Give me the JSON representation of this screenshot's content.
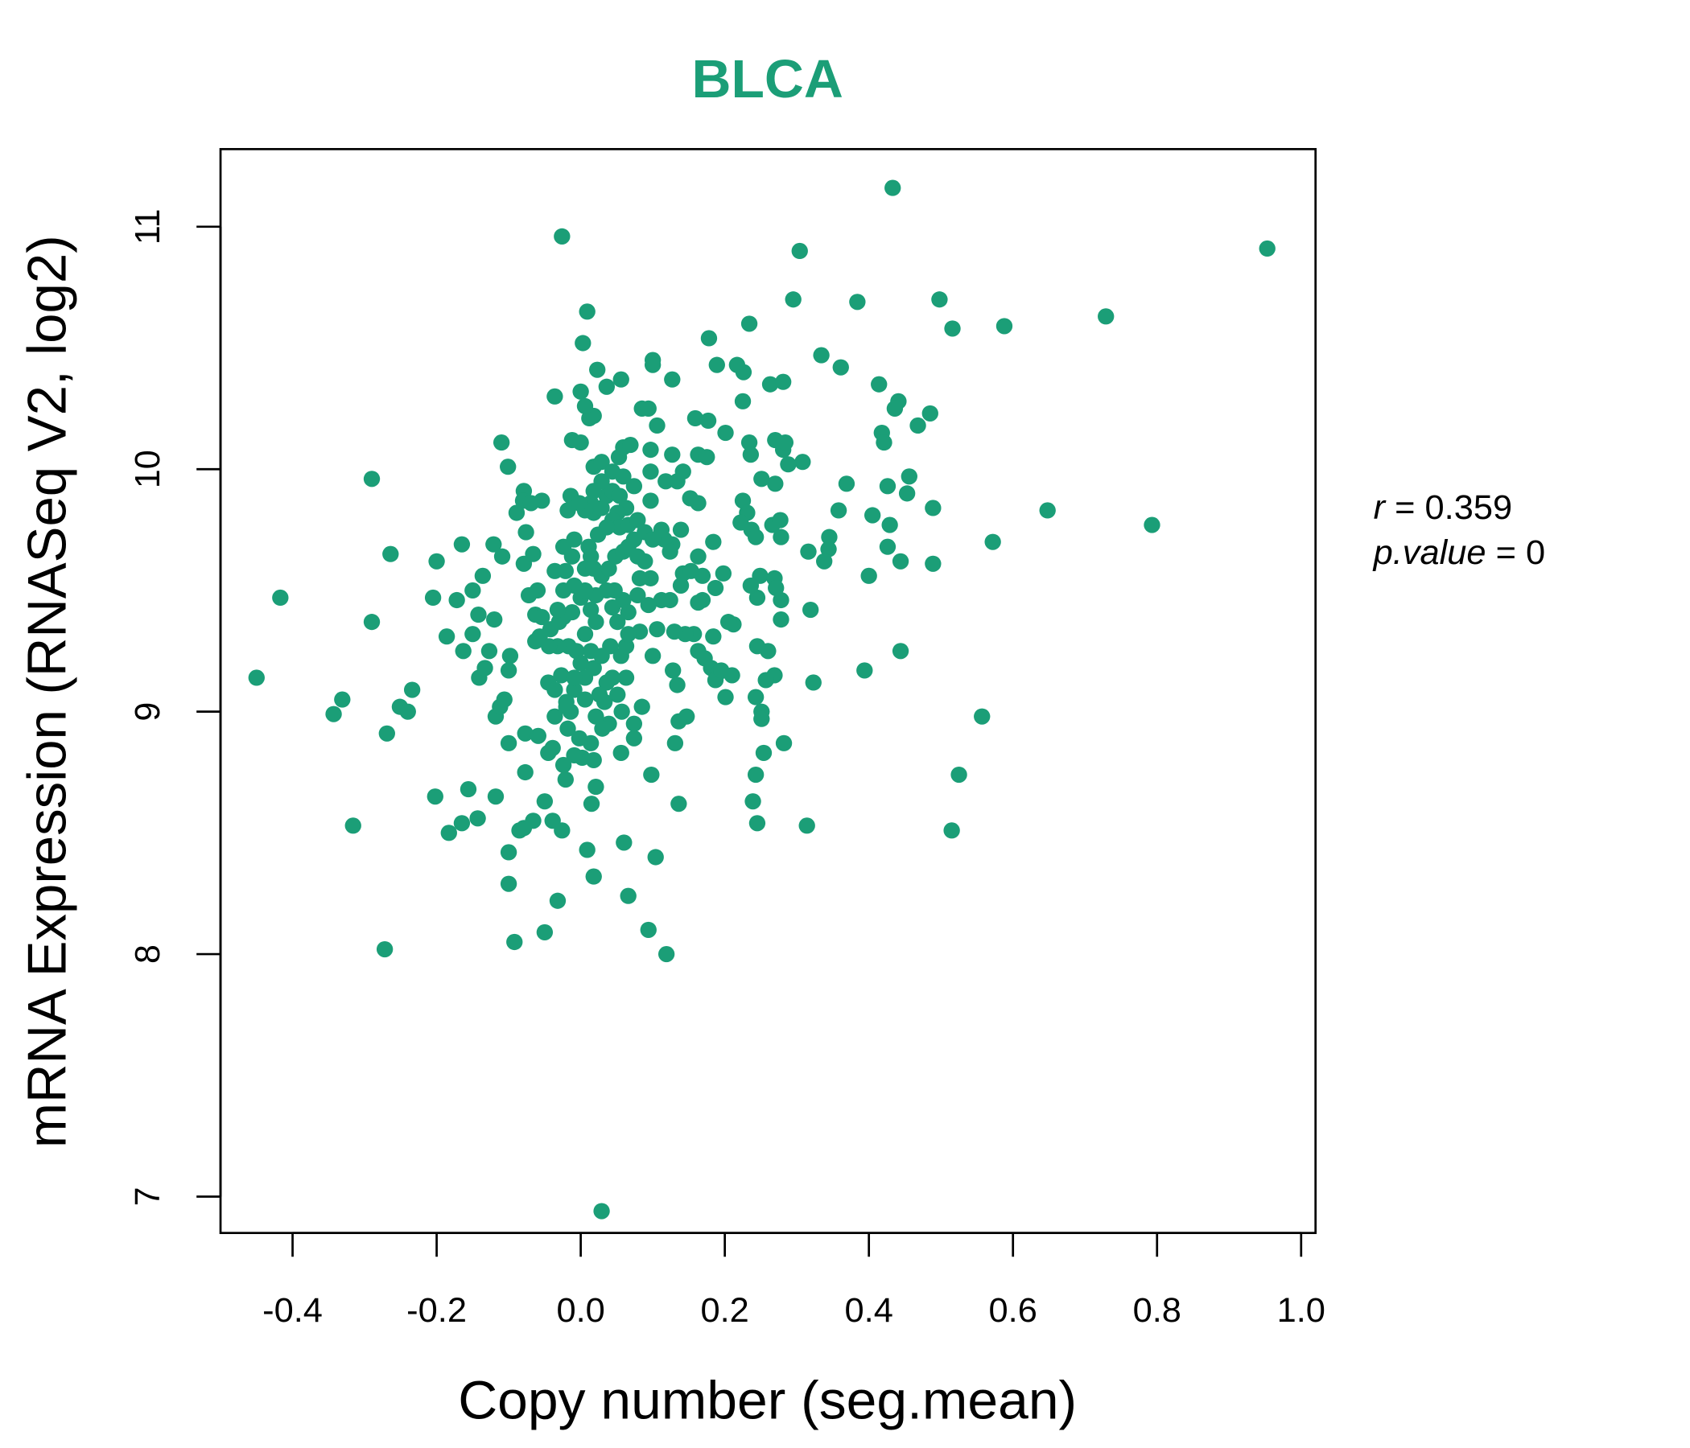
{
  "chart_data": {
    "type": "scatter",
    "title": "BLCA",
    "xlabel": "Copy number (seg.mean)",
    "ylabel": "mRNA Expression (RNASeq V2, log2)",
    "xlim": [
      -0.5,
      1.02
    ],
    "ylim": [
      6.85,
      11.32
    ],
    "xticks": [
      -0.4,
      -0.2,
      0.0,
      0.2,
      0.4,
      0.6,
      0.8,
      1.0
    ],
    "xtick_labels": [
      "-0.4",
      "-0.2",
      "0.0",
      "0.2",
      "0.4",
      "0.6",
      "0.8",
      "1.0"
    ],
    "yticks": [
      7,
      8,
      9,
      10,
      11
    ],
    "ytick_labels": [
      "7",
      "8",
      "9",
      "10",
      "11"
    ],
    "grid": false,
    "color": "#1B9E77",
    "annotation": {
      "r_label": "r",
      "r_value": "0.359",
      "p_label": "p.value",
      "p_value": "0"
    },
    "points": [
      [
        -0.45,
        9.14
      ],
      [
        -0.417,
        9.47
      ],
      [
        -0.29,
        9.96
      ],
      [
        -0.29,
        9.37
      ],
      [
        -0.264,
        9.65
      ],
      [
        -0.331,
        9.05
      ],
      [
        -0.343,
        8.99
      ],
      [
        -0.316,
        8.53
      ],
      [
        -0.272,
        8.02
      ],
      [
        -0.269,
        8.91
      ],
      [
        -0.234,
        9.09
      ],
      [
        -0.251,
        9.02
      ],
      [
        -0.24,
        9.0
      ],
      [
        -0.2,
        9.62
      ],
      [
        -0.205,
        9.47
      ],
      [
        -0.202,
        8.65
      ],
      [
        -0.183,
        8.5
      ],
      [
        -0.165,
        8.54
      ],
      [
        -0.156,
        8.68
      ],
      [
        -0.143,
        8.56
      ],
      [
        -0.165,
        9.69
      ],
      [
        -0.172,
        9.46
      ],
      [
        -0.186,
        9.31
      ],
      [
        -0.163,
        9.25
      ],
      [
        -0.15,
        9.32
      ],
      [
        -0.141,
        9.14
      ],
      [
        -0.133,
        9.18
      ],
      [
        -0.136,
        9.56
      ],
      [
        -0.15,
        9.5
      ],
      [
        -0.142,
        9.4
      ],
      [
        -0.12,
        9.38
      ],
      [
        -0.127,
        9.25
      ],
      [
        -0.118,
        8.98
      ],
      [
        -0.112,
        9.02
      ],
      [
        -0.106,
        9.05
      ],
      [
        -0.118,
        8.65
      ],
      [
        -0.11,
        10.11
      ],
      [
        -0.101,
        10.01
      ],
      [
        -0.121,
        9.69
      ],
      [
        -0.109,
        9.64
      ],
      [
        -0.098,
        9.23
      ],
      [
        -0.1,
        9.17
      ],
      [
        -0.1,
        8.87
      ],
      [
        -0.1,
        8.42
      ],
      [
        -0.1,
        8.29
      ],
      [
        -0.092,
        8.05
      ],
      [
        -0.085,
        8.51
      ],
      [
        -0.079,
        8.52
      ],
      [
        -0.077,
        8.75
      ],
      [
        -0.079,
        9.91
      ],
      [
        -0.089,
        9.82
      ],
      [
        -0.08,
        9.87
      ],
      [
        -0.069,
        9.86
      ],
      [
        -0.054,
        9.87
      ],
      [
        -0.076,
        9.74
      ],
      [
        -0.079,
        9.61
      ],
      [
        -0.066,
        9.65
      ],
      [
        -0.072,
        9.48
      ],
      [
        -0.06,
        9.5
      ],
      [
        -0.063,
        9.4
      ],
      [
        -0.057,
        9.31
      ],
      [
        -0.063,
        9.29
      ],
      [
        -0.077,
        8.91
      ],
      [
        -0.066,
        8.55
      ],
      [
        -0.059,
        8.9
      ],
      [
        -0.05,
        8.63
      ],
      [
        -0.05,
        8.09
      ],
      [
        -0.039,
        8.55
      ],
      [
        -0.032,
        8.22
      ],
      [
        -0.026,
        8.51
      ],
      [
        -0.039,
        8.85
      ],
      [
        -0.045,
        8.83
      ],
      [
        -0.036,
        8.98
      ],
      [
        -0.045,
        9.12
      ],
      [
        -0.026,
        10.96
      ],
      [
        -0.036,
        10.3
      ],
      [
        -0.018,
        9.83
      ],
      [
        -0.014,
        9.89
      ],
      [
        -0.012,
        10.12
      ],
      [
        0.0,
        10.11
      ],
      [
        0.0,
        10.32
      ],
      [
        0.003,
        10.52
      ],
      [
        0.009,
        10.65
      ],
      [
        0.012,
        10.21
      ],
      [
        0.018,
        10.22
      ],
      [
        0.023,
        10.41
      ],
      [
        0.006,
        10.26
      ],
      [
        0.018,
        10.01
      ],
      [
        0.029,
        10.03
      ],
      [
        0.036,
        10.34
      ],
      [
        0.056,
        10.37
      ],
      [
        0.053,
        10.05
      ],
      [
        0.059,
        10.09
      ],
      [
        0.069,
        10.1
      ],
      [
        0.1,
        10.45
      ],
      [
        0.1,
        10.43
      ],
      [
        0.085,
        10.25
      ],
      [
        0.094,
        10.25
      ],
      [
        0.097,
        10.08
      ],
      [
        0.106,
        10.18
      ],
      [
        0.097,
        9.99
      ],
      [
        0.127,
        10.37
      ],
      [
        0.127,
        10.06
      ],
      [
        0.134,
        9.95
      ],
      [
        0.118,
        9.95
      ],
      [
        0.142,
        9.99
      ],
      [
        0.163,
        10.06
      ],
      [
        0.175,
        10.05
      ],
      [
        0.159,
        10.21
      ],
      [
        0.177,
        10.2
      ],
      [
        0.178,
        10.54
      ],
      [
        0.189,
        10.43
      ],
      [
        0.201,
        10.15
      ],
      [
        0.217,
        10.43
      ],
      [
        0.226,
        10.4
      ],
      [
        0.225,
        10.28
      ],
      [
        0.234,
        10.6
      ],
      [
        0.263,
        10.35
      ],
      [
        0.281,
        10.36
      ],
      [
        0.295,
        10.7
      ],
      [
        0.304,
        10.9
      ],
      [
        0.334,
        10.47
      ],
      [
        0.361,
        10.42
      ],
      [
        0.384,
        10.69
      ],
      [
        0.414,
        10.35
      ],
      [
        0.433,
        11.16
      ],
      [
        0.441,
        10.28
      ],
      [
        0.436,
        10.25
      ],
      [
        0.418,
        10.15
      ],
      [
        0.421,
        10.11
      ],
      [
        0.485,
        10.23
      ],
      [
        0.468,
        10.18
      ],
      [
        0.498,
        10.7
      ],
      [
        0.516,
        10.58
      ],
      [
        0.588,
        10.59
      ],
      [
        0.729,
        10.63
      ],
      [
        0.953,
        10.91
      ],
      [
        0.793,
        9.77
      ],
      [
        0.648,
        9.83
      ],
      [
        0.572,
        9.7
      ],
      [
        0.489,
        9.84
      ],
      [
        0.489,
        9.61
      ],
      [
        0.456,
        9.97
      ],
      [
        0.453,
        9.9
      ],
      [
        0.426,
        9.93
      ],
      [
        0.429,
        9.77
      ],
      [
        0.426,
        9.68
      ],
      [
        0.444,
        9.62
      ],
      [
        0.405,
        9.81
      ],
      [
        0.4,
        9.56
      ],
      [
        0.369,
        9.94
      ],
      [
        0.358,
        9.83
      ],
      [
        0.345,
        9.72
      ],
      [
        0.344,
        9.67
      ],
      [
        0.338,
        9.62
      ],
      [
        0.316,
        9.66
      ],
      [
        0.319,
        9.42
      ],
      [
        0.323,
        9.12
      ],
      [
        0.394,
        9.17
      ],
      [
        0.444,
        9.25
      ],
      [
        0.557,
        8.98
      ],
      [
        0.525,
        8.74
      ],
      [
        0.515,
        8.51
      ],
      [
        0.314,
        8.53
      ],
      [
        0.308,
        10.03
      ],
      [
        0.288,
        10.02
      ],
      [
        0.27,
        10.12
      ],
      [
        0.281,
        10.08
      ],
      [
        0.284,
        10.11
      ],
      [
        0.27,
        9.94
      ],
      [
        0.251,
        9.96
      ],
      [
        0.234,
        10.11
      ],
      [
        0.236,
        10.06
      ],
      [
        0.225,
        9.87
      ],
      [
        0.231,
        9.82
      ],
      [
        0.222,
        9.78
      ],
      [
        0.237,
        9.75
      ],
      [
        0.243,
        9.72
      ],
      [
        0.266,
        9.77
      ],
      [
        0.277,
        9.79
      ],
      [
        0.278,
        9.72
      ],
      [
        0.249,
        9.56
      ],
      [
        0.245,
        9.47
      ],
      [
        0.236,
        9.52
      ],
      [
        0.269,
        9.55
      ],
      [
        0.271,
        9.51
      ],
      [
        0.278,
        9.46
      ],
      [
        0.278,
        9.38
      ],
      [
        0.26,
        9.25
      ],
      [
        0.245,
        9.27
      ],
      [
        0.269,
        9.15
      ],
      [
        0.257,
        9.13
      ],
      [
        0.243,
        9.06
      ],
      [
        0.251,
        9.0
      ],
      [
        0.251,
        8.97
      ],
      [
        0.254,
        8.83
      ],
      [
        0.282,
        8.87
      ],
      [
        0.243,
        8.74
      ],
      [
        0.239,
        8.63
      ],
      [
        0.245,
        8.54
      ],
      [
        0.201,
        9.06
      ],
      [
        0.212,
        9.36
      ],
      [
        0.205,
        9.37
      ],
      [
        0.198,
        9.57
      ],
      [
        0.187,
        9.51
      ],
      [
        0.184,
        9.7
      ],
      [
        0.169,
        9.46
      ],
      [
        0.163,
        9.45
      ],
      [
        0.163,
        9.64
      ],
      [
        0.169,
        9.56
      ],
      [
        0.163,
        9.86
      ],
      [
        0.152,
        9.88
      ],
      [
        0.139,
        9.75
      ],
      [
        0.127,
        9.69
      ],
      [
        0.116,
        9.71
      ],
      [
        0.124,
        9.66
      ],
      [
        0.142,
        9.57
      ],
      [
        0.153,
        9.58
      ],
      [
        0.139,
        9.52
      ],
      [
        0.124,
        9.46
      ],
      [
        0.112,
        9.46
      ],
      [
        0.157,
        9.32
      ],
      [
        0.145,
        9.32
      ],
      [
        0.13,
        9.33
      ],
      [
        0.184,
        9.31
      ],
      [
        0.163,
        9.25
      ],
      [
        0.172,
        9.22
      ],
      [
        0.181,
        9.18
      ],
      [
        0.191,
        9.16
      ],
      [
        0.187,
        9.13
      ],
      [
        0.195,
        9.17
      ],
      [
        0.21,
        9.15
      ],
      [
        0.128,
        9.17
      ],
      [
        0.134,
        9.11
      ],
      [
        0.147,
        8.98
      ],
      [
        0.136,
        8.96
      ],
      [
        0.131,
        8.87
      ],
      [
        0.1,
        9.23
      ],
      [
        0.106,
        9.34
      ],
      [
        0.082,
        9.33
      ],
      [
        0.085,
        9.02
      ],
      [
        0.074,
        8.95
      ],
      [
        0.074,
        8.89
      ],
      [
        0.098,
        8.74
      ],
      [
        0.136,
        8.62
      ],
      [
        0.06,
        8.46
      ],
      [
        0.104,
        8.4
      ],
      [
        0.066,
        8.24
      ],
      [
        0.094,
        8.1
      ],
      [
        0.119,
        8.0
      ],
      [
        0.018,
        8.32
      ],
      [
        0.009,
        8.43
      ],
      [
        0.029,
        6.94
      ],
      [
        0.015,
        8.62
      ],
      [
        0.021,
        8.69
      ],
      [
        0.018,
        8.8
      ],
      [
        0.002,
        8.81
      ],
      [
        0.014,
        8.87
      ],
      [
        -0.002,
        8.89
      ],
      [
        -0.009,
        8.82
      ],
      [
        -0.021,
        8.72
      ],
      [
        -0.024,
        8.78
      ],
      [
        -0.018,
        8.93
      ],
      [
        -0.014,
        9.0
      ],
      [
        -0.02,
        9.04
      ],
      [
        -0.009,
        9.09
      ],
      [
        0.006,
        9.14
      ],
      [
        0.018,
        9.18
      ],
      [
        0.033,
        9.04
      ],
      [
        0.039,
        8.95
      ],
      [
        0.03,
        8.93
      ],
      [
        0.056,
        8.83
      ],
      [
        0.057,
        9.0
      ],
      [
        0.051,
        9.07
      ],
      [
        0.063,
        9.14
      ],
      [
        0.044,
        9.14
      ],
      [
        0.056,
        9.23
      ],
      [
        0.041,
        9.27
      ],
      [
        0.063,
        9.27
      ],
      [
        0.066,
        9.32
      ],
      [
        0.051,
        9.37
      ],
      [
        0.044,
        9.43
      ],
      [
        0.059,
        9.46
      ],
      [
        0.047,
        9.5
      ],
      [
        0.036,
        9.5
      ],
      [
        0.021,
        9.48
      ],
      [
        0.014,
        9.42
      ],
      [
        0.021,
        9.37
      ],
      [
        0.006,
        9.32
      ],
      [
        -0.006,
        9.25
      ],
      [
        -0.017,
        9.27
      ],
      [
        -0.032,
        9.27
      ],
      [
        -0.044,
        9.27
      ],
      [
        -0.03,
        9.37
      ],
      [
        -0.024,
        9.39
      ],
      [
        -0.012,
        9.41
      ],
      [
        0.0,
        9.47
      ],
      [
        0.006,
        9.5
      ],
      [
        -0.009,
        9.52
      ],
      [
        -0.024,
        9.5
      ],
      [
        -0.036,
        9.58
      ],
      [
        -0.021,
        9.58
      ],
      [
        -0.012,
        9.64
      ],
      [
        -0.024,
        9.68
      ],
      [
        -0.009,
        9.71
      ],
      [
        0.011,
        9.68
      ],
      [
        0.014,
        9.64
      ],
      [
        0.006,
        9.59
      ],
      [
        0.018,
        9.59
      ],
      [
        0.029,
        9.56
      ],
      [
        0.039,
        9.59
      ],
      [
        0.048,
        9.64
      ],
      [
        0.059,
        9.66
      ],
      [
        0.066,
        9.68
      ],
      [
        0.079,
        9.64
      ],
      [
        0.089,
        9.62
      ],
      [
        0.097,
        9.55
      ],
      [
        0.082,
        9.55
      ],
      [
        0.079,
        9.48
      ],
      [
        0.094,
        9.44
      ],
      [
        0.066,
        9.41
      ],
      [
        0.018,
        9.82
      ],
      [
        0.029,
        9.84
      ],
      [
        0.036,
        9.89
      ],
      [
        0.044,
        9.91
      ],
      [
        0.054,
        9.89
      ],
      [
        0.063,
        9.84
      ],
      [
        0.051,
        9.82
      ],
      [
        0.044,
        9.79
      ],
      [
        0.054,
        9.76
      ],
      [
        0.066,
        9.77
      ],
      [
        0.079,
        9.79
      ],
      [
        0.074,
        9.71
      ],
      [
        0.089,
        9.74
      ],
      [
        0.1,
        9.71
      ],
      [
        0.112,
        9.75
      ],
      [
        0.036,
        9.76
      ],
      [
        0.024,
        9.73
      ],
      [
        0.014,
        9.86
      ],
      [
        0.006,
        9.83
      ],
      [
        -0.002,
        9.86
      ],
      [
        0.029,
        9.95
      ],
      [
        0.044,
        9.99
      ],
      [
        0.059,
        9.97
      ],
      [
        0.074,
        9.93
      ],
      [
        0.097,
        9.87
      ],
      [
        0.018,
        9.91
      ],
      [
        -0.02,
        9.02
      ],
      [
        -0.036,
        9.09
      ],
      [
        -0.027,
        9.15
      ],
      [
        0.0,
        9.2
      ],
      [
        0.014,
        9.25
      ],
      [
        0.029,
        9.23
      ],
      [
        0.036,
        9.12
      ],
      [
        0.026,
        9.07
      ],
      [
        0.006,
        9.05
      ],
      [
        -0.009,
        9.14
      ],
      [
        0.021,
        8.98
      ],
      [
        -0.042,
        9.34
      ],
      [
        -0.032,
        9.42
      ],
      [
        -0.054,
        9.39
      ]
    ]
  }
}
